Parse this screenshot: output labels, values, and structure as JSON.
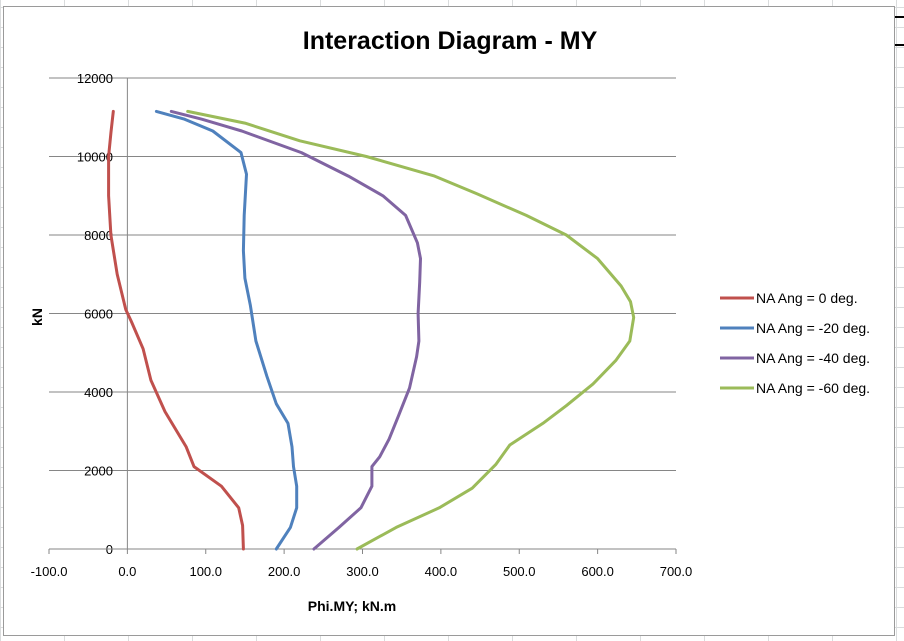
{
  "chart_data": {
    "type": "line",
    "title": "Interaction Diagram - MY",
    "xlabel": "Phi.MY; kN.m",
    "ylabel": "kN",
    "xlim": [
      -100,
      700
    ],
    "ylim": [
      0,
      12000
    ],
    "x_ticks": [
      "-100.0",
      "0.0",
      "100.0",
      "200.0",
      "300.0",
      "400.0",
      "500.0",
      "600.0",
      "700.0"
    ],
    "y_ticks": [
      "0",
      "2000",
      "4000",
      "6000",
      "8000",
      "10000",
      "12000"
    ],
    "grid": "horizontal major gridlines",
    "legend_position": "right",
    "series": [
      {
        "name": "NA Ang = 0 deg.",
        "color": "#c0504d",
        "points": [
          [
            -18,
            11150
          ],
          [
            -21,
            10600
          ],
          [
            -24,
            10000
          ],
          [
            -24,
            9000
          ],
          [
            -21,
            8000
          ],
          [
            -13,
            7000
          ],
          [
            -2,
            6100
          ],
          [
            5,
            5800
          ],
          [
            20,
            5100
          ],
          [
            30,
            4300
          ],
          [
            48,
            3500
          ],
          [
            75,
            2600
          ],
          [
            85,
            2100
          ],
          [
            120,
            1600
          ],
          [
            142,
            1050
          ],
          [
            147,
            600
          ],
          [
            148,
            0
          ]
        ]
      },
      {
        "name": "NA Ang = -20 deg.",
        "color": "#4f81bd",
        "points": [
          [
            37,
            11150
          ],
          [
            73,
            10950
          ],
          [
            109,
            10650
          ],
          [
            145,
            10100
          ],
          [
            152,
            9550
          ],
          [
            149,
            8500
          ],
          [
            148,
            7600
          ],
          [
            150,
            6900
          ],
          [
            157,
            6200
          ],
          [
            164,
            5300
          ],
          [
            178,
            4400
          ],
          [
            190,
            3700
          ],
          [
            205,
            3200
          ],
          [
            210,
            2600
          ],
          [
            212,
            2100
          ],
          [
            216,
            1600
          ],
          [
            216,
            1050
          ],
          [
            208,
            550
          ],
          [
            190,
            0
          ]
        ]
      },
      {
        "name": "NA Ang = -40 deg.",
        "color": "#8064a2",
        "points": [
          [
            56,
            11150
          ],
          [
            95,
            10950
          ],
          [
            146,
            10650
          ],
          [
            222,
            10100
          ],
          [
            282,
            9500
          ],
          [
            326,
            9000
          ],
          [
            355,
            8500
          ],
          [
            370,
            7800
          ],
          [
            374,
            7400
          ],
          [
            373,
            6800
          ],
          [
            371,
            6000
          ],
          [
            372,
            5300
          ],
          [
            369,
            4900
          ],
          [
            360,
            4100
          ],
          [
            346,
            3400
          ],
          [
            334,
            2800
          ],
          [
            322,
            2350
          ],
          [
            312,
            2100
          ],
          [
            312,
            1600
          ],
          [
            298,
            1050
          ],
          [
            270,
            550
          ],
          [
            238,
            0
          ]
        ]
      },
      {
        "name": "NA Ang = -60 deg.",
        "color": "#9bbb59",
        "points": [
          [
            77,
            11150
          ],
          [
            150,
            10850
          ],
          [
            220,
            10400
          ],
          [
            305,
            10000
          ],
          [
            392,
            9500
          ],
          [
            446,
            9050
          ],
          [
            509,
            8500
          ],
          [
            560,
            8000
          ],
          [
            600,
            7400
          ],
          [
            630,
            6700
          ],
          [
            642,
            6300
          ],
          [
            646,
            5900
          ],
          [
            641,
            5300
          ],
          [
            623,
            4800
          ],
          [
            594,
            4200
          ],
          [
            560,
            3650
          ],
          [
            530,
            3200
          ],
          [
            488,
            2650
          ],
          [
            470,
            2150
          ],
          [
            440,
            1550
          ],
          [
            398,
            1050
          ],
          [
            343,
            550
          ],
          [
            293,
            0
          ]
        ]
      }
    ]
  }
}
